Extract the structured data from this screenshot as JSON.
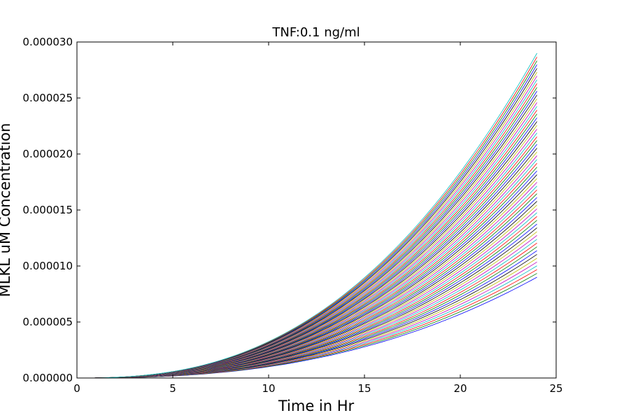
{
  "chart_data": {
    "type": "line",
    "title": "TNF:0.1 ng/ml",
    "xlabel": "Time in Hr",
    "ylabel": "MLKL uM Concentration",
    "xlim": [
      0,
      25
    ],
    "ylim": [
      0,
      3e-05
    ],
    "xticks": [
      0,
      5,
      10,
      15,
      20,
      25
    ],
    "xtick_labels": [
      "0",
      "5",
      "10",
      "15",
      "20",
      "25"
    ],
    "yticks": [
      0,
      5e-06,
      1e-05,
      1.5e-05,
      2e-05,
      2.5e-05,
      3e-05
    ],
    "ytick_labels": [
      "0.000000",
      "0.000005",
      "0.000010",
      "0.000015",
      "0.000020",
      "0.000025",
      "0.000030"
    ],
    "grid": false,
    "legend": "none",
    "curve_shape": "power",
    "curve_exponent": 2.5,
    "x_end": 24,
    "series_count": 60,
    "series_y_end_range": [
      9e-06,
      2.9e-05
    ],
    "series_colors": [
      "#0000ff",
      "#008000",
      "#ff0000",
      "#00bfbf",
      "#bf00bf",
      "#bfbf00",
      "#000000"
    ]
  }
}
